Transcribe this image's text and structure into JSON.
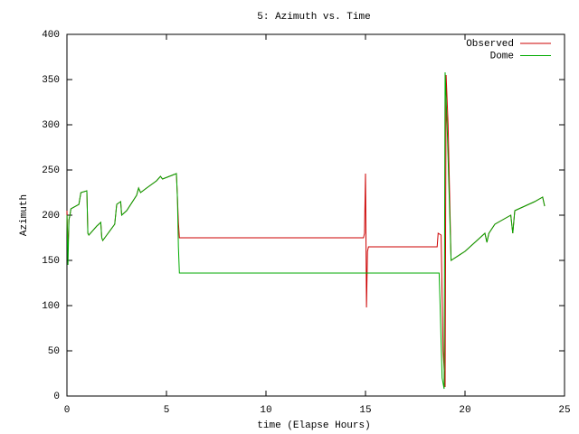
{
  "chart_data": {
    "type": "line",
    "title": "5: Azimuth vs. Time",
    "xlabel": "time (Elapse Hours)",
    "ylabel": "Azimuth",
    "xlim": [
      0,
      25
    ],
    "xticks": [
      0,
      5,
      10,
      15,
      20,
      25
    ],
    "ylim": [
      0,
      400
    ],
    "yticks": [
      0,
      50,
      100,
      150,
      200,
      250,
      300,
      350,
      400
    ],
    "legend": "upper right",
    "series": [
      {
        "name": "Observed",
        "color": "#cc0000",
        "x": [
          0.0,
          0.05,
          0.1,
          0.15,
          0.2,
          0.6,
          0.7,
          1.0,
          1.05,
          1.1,
          1.5,
          1.7,
          1.75,
          1.8,
          2.0,
          2.4,
          2.5,
          2.7,
          2.75,
          3.0,
          3.5,
          3.6,
          3.7,
          4.0,
          4.5,
          4.7,
          4.8,
          5.5,
          5.55,
          5.6,
          5.65,
          14.9,
          14.95,
          15.0,
          15.05,
          15.1,
          15.15,
          18.6,
          18.65,
          18.8,
          18.85,
          18.9,
          19.0,
          19.05,
          19.15,
          19.3,
          20.0,
          20.5,
          21.0,
          21.1,
          21.2,
          21.5,
          22.3,
          22.4,
          22.5,
          23.5,
          23.9,
          24.0
        ],
        "values": [
          205,
          160,
          195,
          200,
          207,
          212,
          225,
          227,
          180,
          178,
          188,
          192,
          175,
          172,
          178,
          190,
          212,
          215,
          200,
          205,
          222,
          230,
          225,
          230,
          238,
          243,
          240,
          246,
          220,
          192,
          175,
          175,
          180,
          246,
          98,
          160,
          165,
          165,
          180,
          178,
          110,
          50,
          10,
          355,
          300,
          150,
          160,
          170,
          180,
          170,
          180,
          190,
          200,
          180,
          205,
          215,
          220,
          210
        ]
      },
      {
        "name": "Dome",
        "color": "#00aa00",
        "x": [
          0.0,
          0.05,
          0.1,
          0.15,
          0.2,
          0.6,
          0.7,
          1.0,
          1.05,
          1.1,
          1.5,
          1.7,
          1.75,
          1.8,
          2.0,
          2.4,
          2.5,
          2.7,
          2.75,
          3.0,
          3.5,
          3.6,
          3.7,
          4.0,
          4.5,
          4.7,
          4.8,
          5.5,
          5.55,
          5.6,
          5.65,
          18.7,
          18.75,
          18.85,
          18.95,
          19.0,
          19.1,
          19.3,
          20.0,
          20.5,
          21.0,
          21.1,
          21.2,
          21.5,
          22.3,
          22.4,
          22.5,
          23.5,
          23.9,
          24.0
        ],
        "values": [
          200,
          145,
          195,
          200,
          207,
          212,
          225,
          227,
          180,
          178,
          188,
          192,
          175,
          172,
          178,
          190,
          212,
          215,
          200,
          205,
          222,
          230,
          225,
          230,
          238,
          243,
          240,
          246,
          220,
          165,
          136,
          136,
          100,
          20,
          8,
          358,
          300,
          150,
          160,
          170,
          180,
          170,
          180,
          190,
          200,
          180,
          205,
          215,
          220,
          210
        ]
      }
    ]
  }
}
